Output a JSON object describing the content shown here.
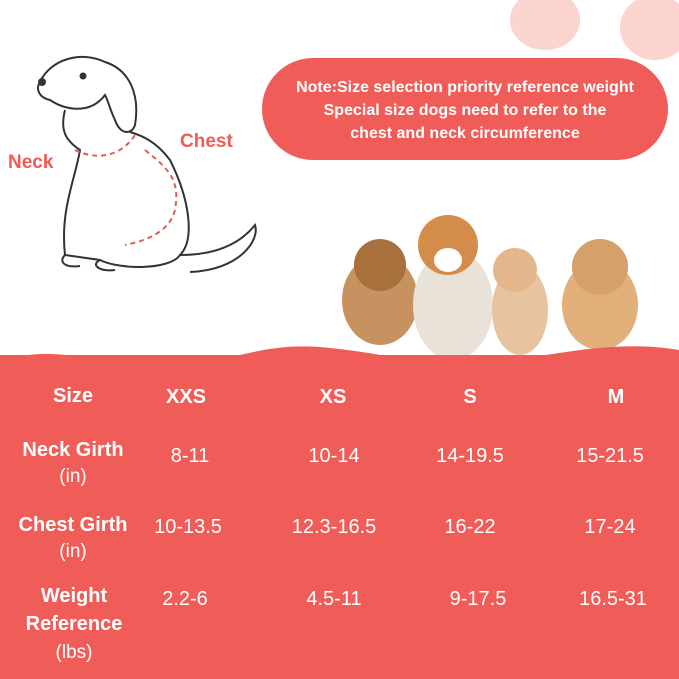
{
  "note": {
    "lines": [
      "Note:Size selection priority reference weight",
      "Special size dogs need to refer to the",
      "chest and neck circumference"
    ]
  },
  "labels": {
    "neck": "Neck",
    "chest": "Chest"
  },
  "colors": {
    "accent": "#f05d58",
    "flower": "#fbd3cf"
  },
  "table": {
    "header": {
      "label": "Size",
      "sizes": [
        "XXS",
        "XS",
        "S",
        "M"
      ]
    },
    "rows": [
      {
        "label": "Neck Girth",
        "unit": "(in)",
        "values": [
          "8-11",
          "10-14",
          "14-19.5",
          "15-21.5"
        ]
      },
      {
        "label": "Chest Girth",
        "unit": "(in)",
        "values": [
          "10-13.5",
          "12.3-16.5",
          "16-22",
          "17-24"
        ]
      },
      {
        "label": "Weight Reference",
        "unit": "(lbs)",
        "values": [
          "2.2-6",
          "4.5-11",
          "9-17.5",
          "16.5-31"
        ]
      }
    ]
  }
}
